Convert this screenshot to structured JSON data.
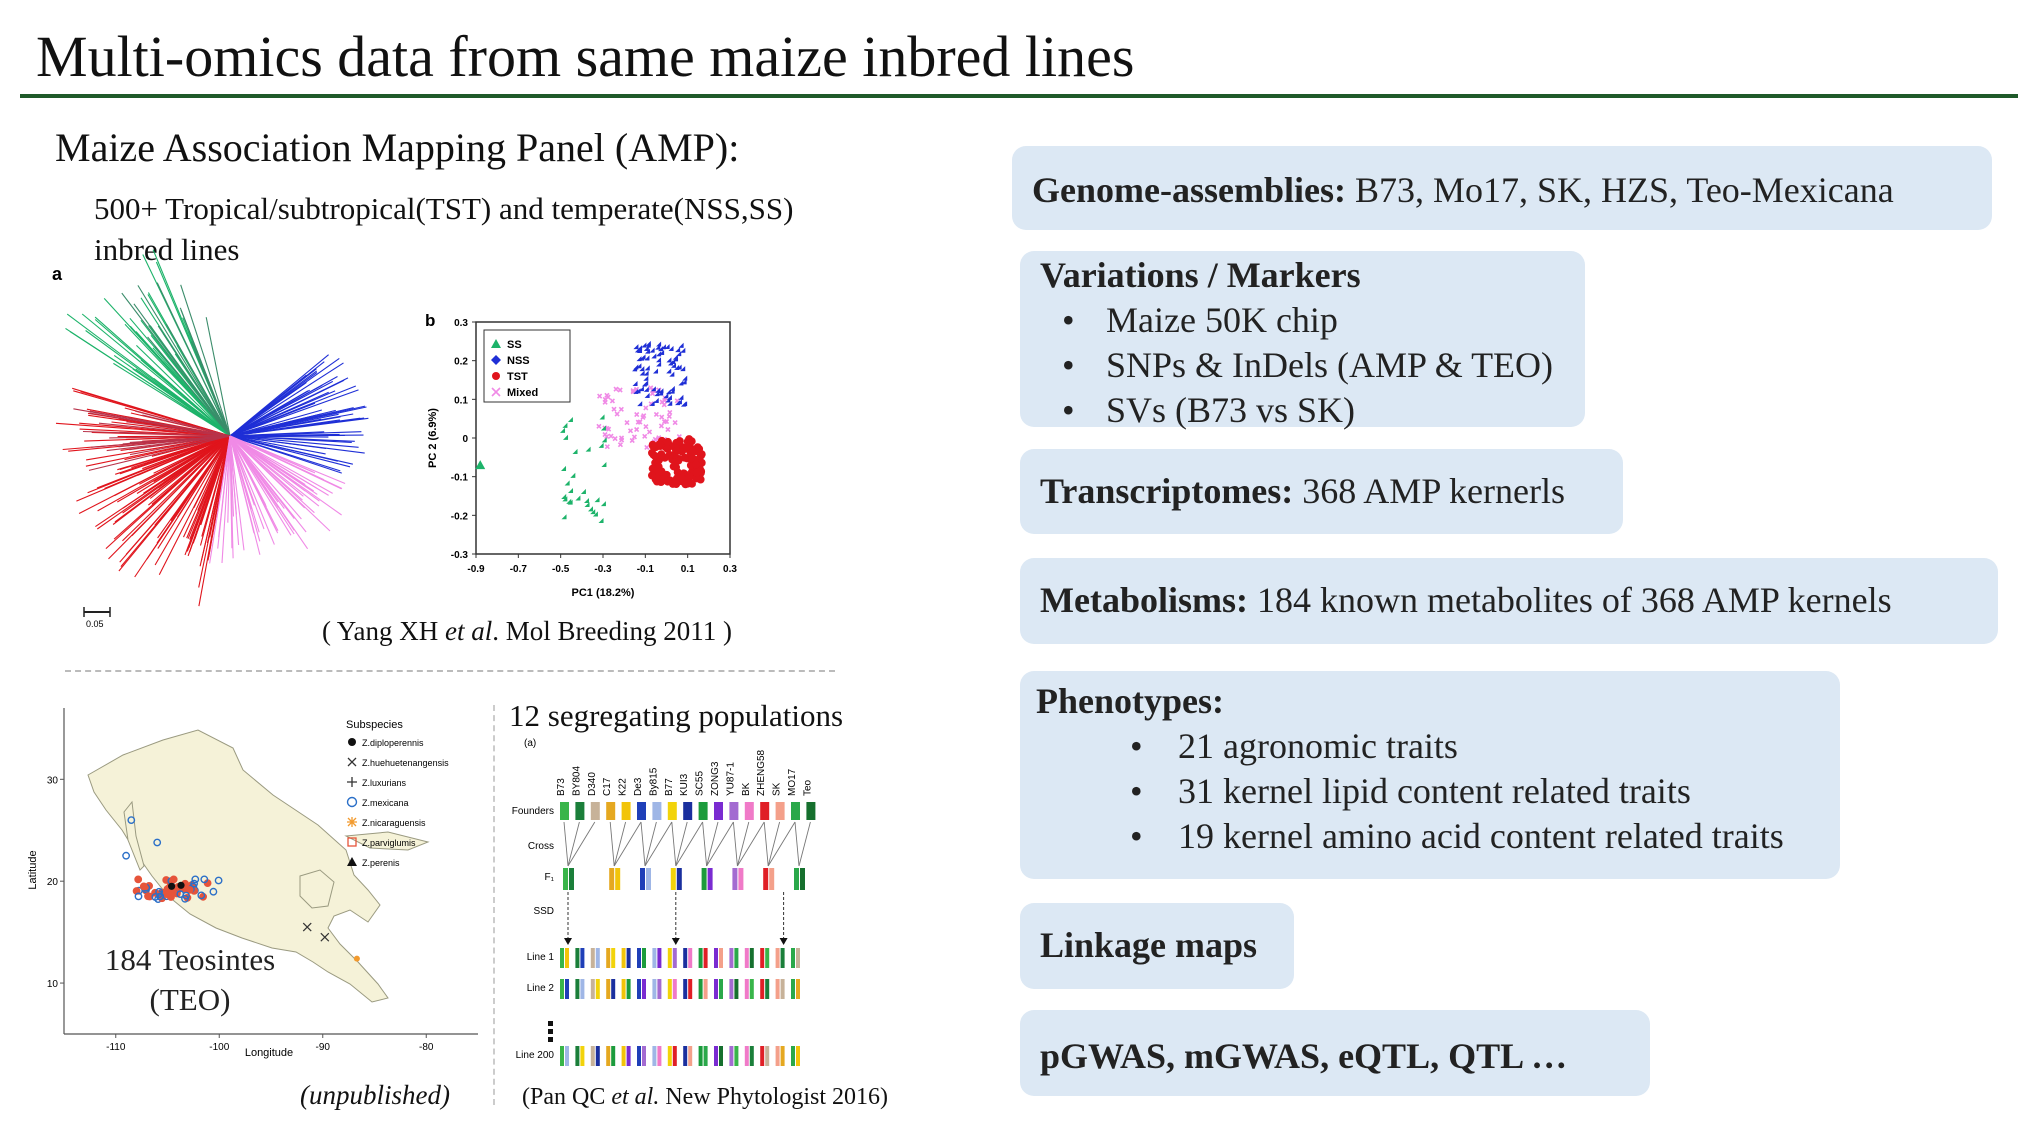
{
  "slide": {
    "title": "Multi-omics data from same maize inbred lines"
  },
  "left": {
    "amp_heading": "Maize Association Mapping Panel (AMP):",
    "amp_sub_line1": "500+ Tropical/subtropical(TST) and temperate(NSS,SS)",
    "amp_sub_line2": "inbred lines",
    "panel_a_label": "a",
    "panel_b_label": "b",
    "scale_label": "0.05",
    "citation_amp_pre": "( Yang XH ",
    "citation_amp_etal": "et al",
    "citation_amp_post": ". Mol Breeding 2011 )",
    "pca": {
      "x_axis_label": "PC1 (18.2%)",
      "y_axis_label": "PC 2 (6.9%)",
      "x_ticks": [
        "-0.9",
        "-0.7",
        "-0.5",
        "-0.3",
        "-0.1",
        "0.1",
        "0.3"
      ],
      "y_ticks": [
        "0.3",
        "0.2",
        "0.1",
        "0",
        "-0.1",
        "-0.2",
        "-0.3"
      ],
      "legend": [
        {
          "label": "SS",
          "color": "#1db36a",
          "marker": "triangle"
        },
        {
          "label": "NSS",
          "color": "#1f2fd6",
          "marker": "diamond"
        },
        {
          "label": "TST",
          "color": "#e0141c",
          "marker": "circle"
        },
        {
          "label": "Mixed",
          "color": "#f08ae6",
          "marker": "cross"
        }
      ]
    },
    "map": {
      "legend_title": "Subspecies",
      "legend_items": [
        "Z.diploperennis",
        "Z.huehuetenangensis",
        "Z.luxurians",
        "Z.mexicana",
        "Z.nicaraguensis",
        "Z.parviglumis",
        "Z.perenis"
      ],
      "y_axis_label": "Latitude",
      "x_axis_label": "Longitude",
      "y_ticks": [
        "30",
        "20",
        "10"
      ],
      "x_ticks": [
        "-110",
        "-100",
        "-90",
        "-80"
      ],
      "teo_label_line1": "184 Teosintes",
      "teo_label_line2": "(TEO)",
      "unpublished": "(unpublished)"
    },
    "segregating": {
      "title": "12 segregating populations",
      "panel_label": "(a)",
      "founders": [
        "B73",
        "BY804",
        "D340",
        "C17",
        "K22",
        "De3",
        "By815",
        "B77",
        "KUI3",
        "SC55",
        "ZONG3",
        "YU87-1",
        "BK",
        "ZHENG58",
        "SK",
        "MO17",
        "Teo"
      ],
      "row_labels": [
        "Founders",
        "Cross",
        "F₁",
        "SSD",
        "Line 1",
        "Line 2",
        "Line 200"
      ],
      "citation_pre": "(Pan QC ",
      "citation_etal": "et al.",
      "citation_post": " New Phytologist 2016)"
    }
  },
  "right": {
    "genome": {
      "bold": "Genome-assemblies:",
      "text": " B73, Mo17, SK, HZS, Teo-Mexicana"
    },
    "variations": {
      "bold": "Variations / Markers",
      "items": [
        "Maize 50K chip",
        "SNPs & InDels (AMP & TEO)",
        "SVs (B73 vs SK)"
      ]
    },
    "transcriptomes": {
      "bold": "Transcriptomes:",
      "text": " 368 AMP kernerls"
    },
    "metabolisms": {
      "bold": "Metabolisms:",
      "text": " 184 known metabolites of 368 AMP kernels"
    },
    "phenotypes": {
      "bold": "Phenotypes:",
      "items": [
        "21 agronomic traits",
        "31 kernel lipid content related traits",
        "19 kernel amino acid content related traits"
      ]
    },
    "linkage": {
      "bold": "Linkage maps"
    },
    "gwas": {
      "bold": "pGWAS, mGWAS, eQTL, QTL …"
    }
  },
  "colors": {
    "title_rule": "#1f5a2a",
    "box_fill": "#dce8f4",
    "ss": "#1db36a",
    "nss": "#1f2fd6",
    "tst": "#e0141c",
    "mixed": "#f08ae6"
  }
}
